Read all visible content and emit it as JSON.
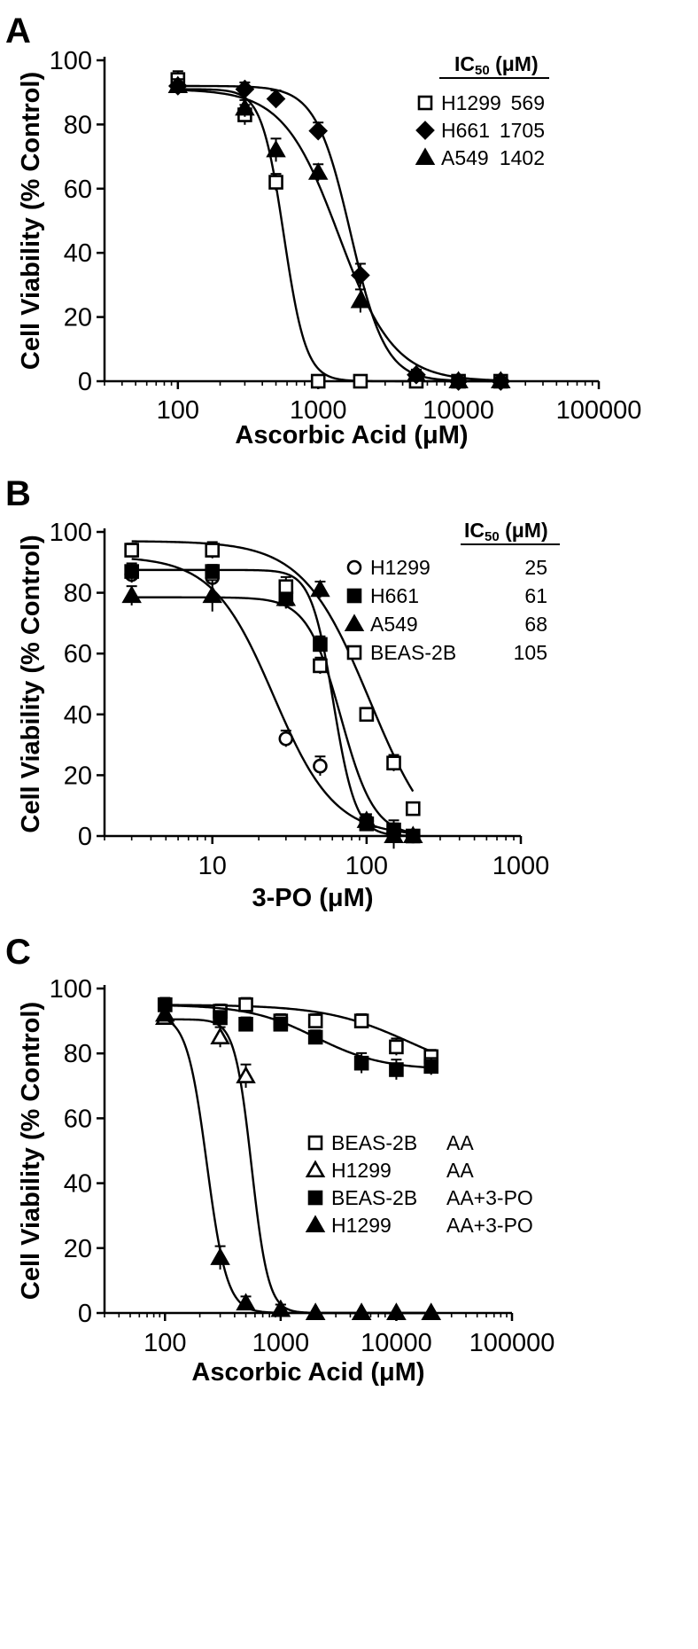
{
  "figure": {
    "panels": [
      {
        "letter": "A",
        "ylabel": "Cell Viability (% Control)",
        "xlabel": "Ascorbic Acid (μM)",
        "legend_header": "IC50 (μM)"
      },
      {
        "letter": "B",
        "ylabel": "Cell Viability (% Control)",
        "xlabel": "3-PO (μM)",
        "legend_header": "IC50 (μM)"
      },
      {
        "letter": "C",
        "ylabel": "Cell Viability (% Control)",
        "xlabel": "Ascorbic Acid (μM)",
        "legend_header": ""
      }
    ]
  },
  "chart_data": [
    {
      "type": "line",
      "panel": "A",
      "title": "",
      "xlabel": "Ascorbic Acid (μM)",
      "ylabel": "Cell Viability (% Control)",
      "xscale": "log",
      "xlim": [
        30,
        100000
      ],
      "ylim": [
        0,
        100
      ],
      "xticks": [
        100,
        1000,
        10000,
        100000
      ],
      "xtick_labels": [
        "100",
        "1000",
        "10000",
        "100000"
      ],
      "yticks": [
        0,
        20,
        40,
        60,
        80,
        100
      ],
      "ytick_labels": [
        "0",
        "20",
        "40",
        "60",
        "80",
        "100"
      ],
      "legend_header": "IC50 (μM)",
      "legend_position": "top-right",
      "series": [
        {
          "name": "H1299",
          "ic50_label": "569",
          "marker": "square-open",
          "ic50": 569,
          "top": 91,
          "bottom": 0,
          "hill": 5.5,
          "curve_range": [
            100,
            20000
          ],
          "x": [
            100,
            300,
            500,
            1000,
            2000,
            5000,
            10000,
            20000
          ],
          "y": [
            94,
            83,
            62,
            0,
            0,
            0,
            0,
            0
          ],
          "err": [
            1.5,
            2,
            1.5,
            0,
            0,
            0,
            0,
            0
          ]
        },
        {
          "name": "H661",
          "ic50_label": "1705",
          "marker": "diamond-filled",
          "ic50": 1705,
          "top": 92,
          "bottom": 0,
          "hill": 3.5,
          "curve_range": [
            100,
            20000
          ],
          "x": [
            100,
            300,
            500,
            1000,
            2000,
            5000,
            10000,
            20000
          ],
          "y": [
            92,
            91,
            88,
            78,
            33,
            2,
            0,
            0
          ],
          "err": [
            1,
            1,
            1.5,
            1.5,
            2.5,
            0.5,
            0,
            0
          ]
        },
        {
          "name": "A549",
          "ic50_label": "1402",
          "marker": "triangle-filled",
          "ic50": 1402,
          "top": 91,
          "bottom": 0,
          "hill": 2.2,
          "curve_range": [
            100,
            20000
          ],
          "x": [
            100,
            300,
            500,
            1000,
            2000,
            5000,
            10000,
            20000
          ],
          "y": [
            92,
            85,
            72,
            65,
            25,
            2,
            0,
            0
          ],
          "err": [
            1,
            1.5,
            2.5,
            1.5,
            2.5,
            0.5,
            0,
            0
          ]
        }
      ]
    },
    {
      "type": "line",
      "panel": "B",
      "title": "",
      "xlabel": "3-PO (μM)",
      "ylabel": "Cell Viability (% Control)",
      "xscale": "log",
      "xlim": [
        2,
        1000
      ],
      "ylim": [
        0,
        100
      ],
      "xticks": [
        10,
        100,
        1000
      ],
      "xtick_labels": [
        "10",
        "100",
        "1000"
      ],
      "yticks": [
        0,
        20,
        40,
        60,
        80,
        100
      ],
      "ytick_labels": [
        "0",
        "20",
        "40",
        "60",
        "80",
        "100"
      ],
      "legend_header": "IC50 (μM)",
      "legend_position": "top-right",
      "series": [
        {
          "name": "H1299",
          "ic50_label": "25",
          "marker": "circle-open",
          "ic50": 25,
          "top": 92,
          "bottom": 0,
          "hill": 2.2,
          "curve_range": [
            3,
            200
          ],
          "x": [
            3,
            10,
            30,
            50,
            100,
            150,
            200
          ],
          "y": [
            86,
            85,
            32,
            23,
            5,
            1,
            0
          ],
          "err": [
            1.5,
            1.5,
            1.5,
            2,
            1,
            0.5,
            0
          ]
        },
        {
          "name": "H661",
          "ic50_label": "61",
          "marker": "square-filled",
          "ic50": 61,
          "top": 87.5,
          "bottom": 0,
          "hill": 6,
          "curve_range": [
            3,
            200
          ],
          "x": [
            3,
            10,
            30,
            50,
            100,
            150,
            200
          ],
          "y": [
            87,
            87,
            78,
            63,
            4,
            2,
            0
          ],
          "err": [
            1.5,
            1,
            2,
            1.5,
            1,
            2,
            0
          ]
        },
        {
          "name": "A549",
          "ic50_label": "68",
          "marker": "triangle-filled",
          "ic50": 68,
          "top": 78.5,
          "bottom": 0,
          "hill": 4,
          "curve_range": [
            3,
            200
          ],
          "x": [
            3,
            10,
            30,
            50,
            100,
            150,
            200
          ],
          "y": [
            79,
            79,
            78,
            81,
            5,
            0,
            0
          ],
          "err": [
            2,
            4,
            2,
            1.5,
            1,
            3,
            0
          ]
        },
        {
          "name": "BEAS-2B",
          "ic50_label": "105",
          "marker": "square-open",
          "ic50": 105,
          "top": 97,
          "bottom": -8,
          "hill": 2,
          "curve_range": [
            3,
            200
          ],
          "x": [
            3,
            10,
            30,
            50,
            100,
            150,
            200
          ],
          "y": [
            94,
            94,
            82,
            56,
            40,
            24,
            9
          ],
          "err": [
            1,
            1.5,
            2,
            1.5,
            1,
            1.5,
            0.5
          ]
        }
      ]
    },
    {
      "type": "line",
      "panel": "C",
      "title": "",
      "xlabel": "Ascorbic Acid (μM)",
      "ylabel": "Cell Viability (% Control)",
      "xscale": "log",
      "xlim": [
        30,
        100000
      ],
      "ylim": [
        0,
        100
      ],
      "xticks": [
        100,
        1000,
        10000,
        100000
      ],
      "xtick_labels": [
        "100",
        "1000",
        "10000",
        "100000"
      ],
      "yticks": [
        0,
        20,
        40,
        60,
        80,
        100
      ],
      "ytick_labels": [
        "0",
        "20",
        "40",
        "60",
        "80",
        "100"
      ],
      "legend_header": "",
      "legend_position": "center-right",
      "series": [
        {
          "name": "BEAS-2B",
          "treatment": "AA",
          "marker": "square-open",
          "ic50": 13000,
          "top": 95,
          "bottom": 72,
          "hill": 1.2,
          "curve_range": [
            100,
            20000
          ],
          "x": [
            100,
            300,
            500,
            1000,
            2000,
            5000,
            10000,
            20000
          ],
          "y": [
            95,
            93,
            95,
            90,
            90,
            90,
            82,
            79
          ],
          "err": [
            1,
            1,
            1,
            1,
            1,
            1,
            1.5,
            1
          ]
        },
        {
          "name": "H1299",
          "treatment": "AA",
          "marker": "triangle-open",
          "ic50": 560,
          "top": 90.5,
          "bottom": 0,
          "hill": 6,
          "curve_range": [
            100,
            20000
          ],
          "x": [
            100,
            300,
            500,
            1000,
            2000,
            5000,
            10000,
            20000
          ],
          "y": [
            91,
            85,
            73,
            1,
            0,
            0,
            0,
            0
          ],
          "err": [
            1,
            2,
            2.5,
            0.5,
            0,
            0,
            0,
            0
          ]
        },
        {
          "name": "BEAS-2B",
          "treatment": "AA+3-PO",
          "marker": "square-filled",
          "ic50": 2000,
          "top": 95,
          "bottom": 75,
          "hill": 1.5,
          "curve_range": [
            100,
            20000
          ],
          "x": [
            100,
            300,
            500,
            1000,
            2000,
            5000,
            10000,
            20000
          ],
          "y": [
            95,
            91,
            89,
            89,
            85,
            77,
            75,
            76
          ],
          "err": [
            1,
            1,
            1,
            1,
            1,
            2,
            2,
            1.5
          ]
        },
        {
          "name": "H1299",
          "treatment": "AA+3-PO",
          "marker": "triangle-filled",
          "ic50": 230,
          "top": 92,
          "bottom": 0,
          "hill": 5,
          "curve_range": [
            100,
            20000
          ],
          "x": [
            100,
            300,
            500,
            1000,
            2000,
            5000,
            10000,
            20000
          ],
          "y": [
            92,
            17,
            3,
            1,
            0,
            0,
            0,
            0
          ],
          "err": [
            1,
            2.5,
            1,
            0.5,
            0,
            0,
            0,
            0
          ]
        }
      ]
    }
  ]
}
